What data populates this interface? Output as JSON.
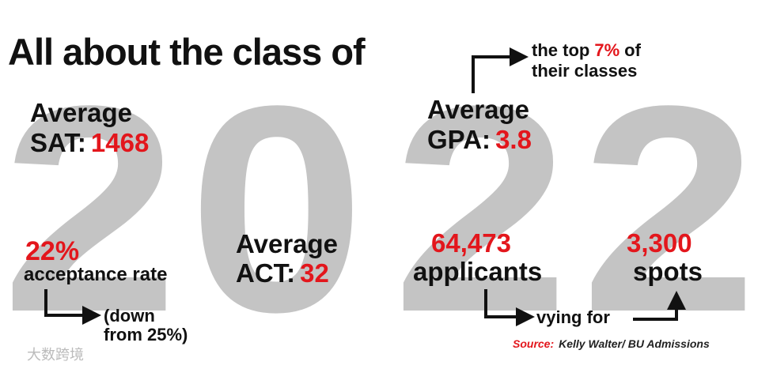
{
  "title": "All about the class of",
  "year_digits": [
    "2",
    "0",
    "2",
    "2"
  ],
  "sat": {
    "label_line1": "Average",
    "label_line2": "SAT:",
    "value": "1468"
  },
  "gpa": {
    "label_line1": "Average",
    "label_line2": "GPA:",
    "value": "3.8"
  },
  "gpa_note": {
    "before": "the top",
    "highlight": "7%",
    "after": "of",
    "line2": "their classes"
  },
  "acceptance": {
    "value": "22%",
    "label": "acceptance rate",
    "note_line1": "(down",
    "note_line2": "from 25%)"
  },
  "act": {
    "label_line1": "Average",
    "label_line2": "ACT:",
    "value": "32"
  },
  "applicants": {
    "value": "64,473",
    "label": "applicants"
  },
  "vying": "vying for",
  "spots": {
    "value": "3,300",
    "label": "spots"
  },
  "source": {
    "label": "Source:",
    "text": "Kelly Walter/ BU Admissions"
  },
  "watermark": "大数跨境"
}
